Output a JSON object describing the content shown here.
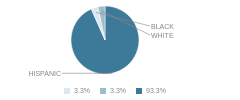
{
  "chart_data": {
    "type": "pie",
    "categories": [
      "HISPANIC",
      "BLACK",
      "WHITE"
    ],
    "values": [
      93.3,
      3.3,
      3.3
    ],
    "value_labels": [
      "93.3%",
      "3.3%",
      "3.3%"
    ],
    "colors": [
      "#3d7a9a",
      "#dce8f0",
      "#9bbdcc"
    ],
    "legend": "bottom"
  }
}
